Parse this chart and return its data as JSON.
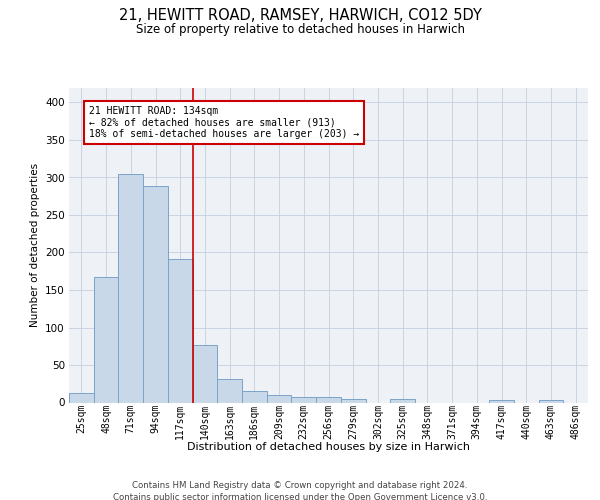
{
  "title1": "21, HEWITT ROAD, RAMSEY, HARWICH, CO12 5DY",
  "title2": "Size of property relative to detached houses in Harwich",
  "xlabel": "Distribution of detached houses by size in Harwich",
  "ylabel": "Number of detached properties",
  "categories": [
    "25sqm",
    "48sqm",
    "71sqm",
    "94sqm",
    "117sqm",
    "140sqm",
    "163sqm",
    "186sqm",
    "209sqm",
    "232sqm",
    "256sqm",
    "279sqm",
    "302sqm",
    "325sqm",
    "348sqm",
    "371sqm",
    "394sqm",
    "417sqm",
    "440sqm",
    "463sqm",
    "486sqm"
  ],
  "values": [
    13,
    167,
    305,
    288,
    191,
    77,
    31,
    16,
    10,
    8,
    8,
    5,
    0,
    5,
    0,
    0,
    0,
    3,
    0,
    3,
    0
  ],
  "bar_color": "#c8d8e8",
  "bar_edge_color": "#7ba3c8",
  "vline_index": 5,
  "vline_color": "#cc0000",
  "annotation_line1": "21 HEWITT ROAD: 134sqm",
  "annotation_line2": "← 82% of detached houses are smaller (913)",
  "annotation_line3": "18% of semi-detached houses are larger (203) →",
  "annotation_box_color": "white",
  "annotation_box_edge_color": "#cc0000",
  "ylim": [
    0,
    420
  ],
  "yticks": [
    0,
    50,
    100,
    150,
    200,
    250,
    300,
    350,
    400
  ],
  "bg_color": "#eef2f7",
  "grid_color": "#c5cfe0",
  "footer1": "Contains HM Land Registry data © Crown copyright and database right 2024.",
  "footer2": "Contains public sector information licensed under the Open Government Licence v3.0."
}
